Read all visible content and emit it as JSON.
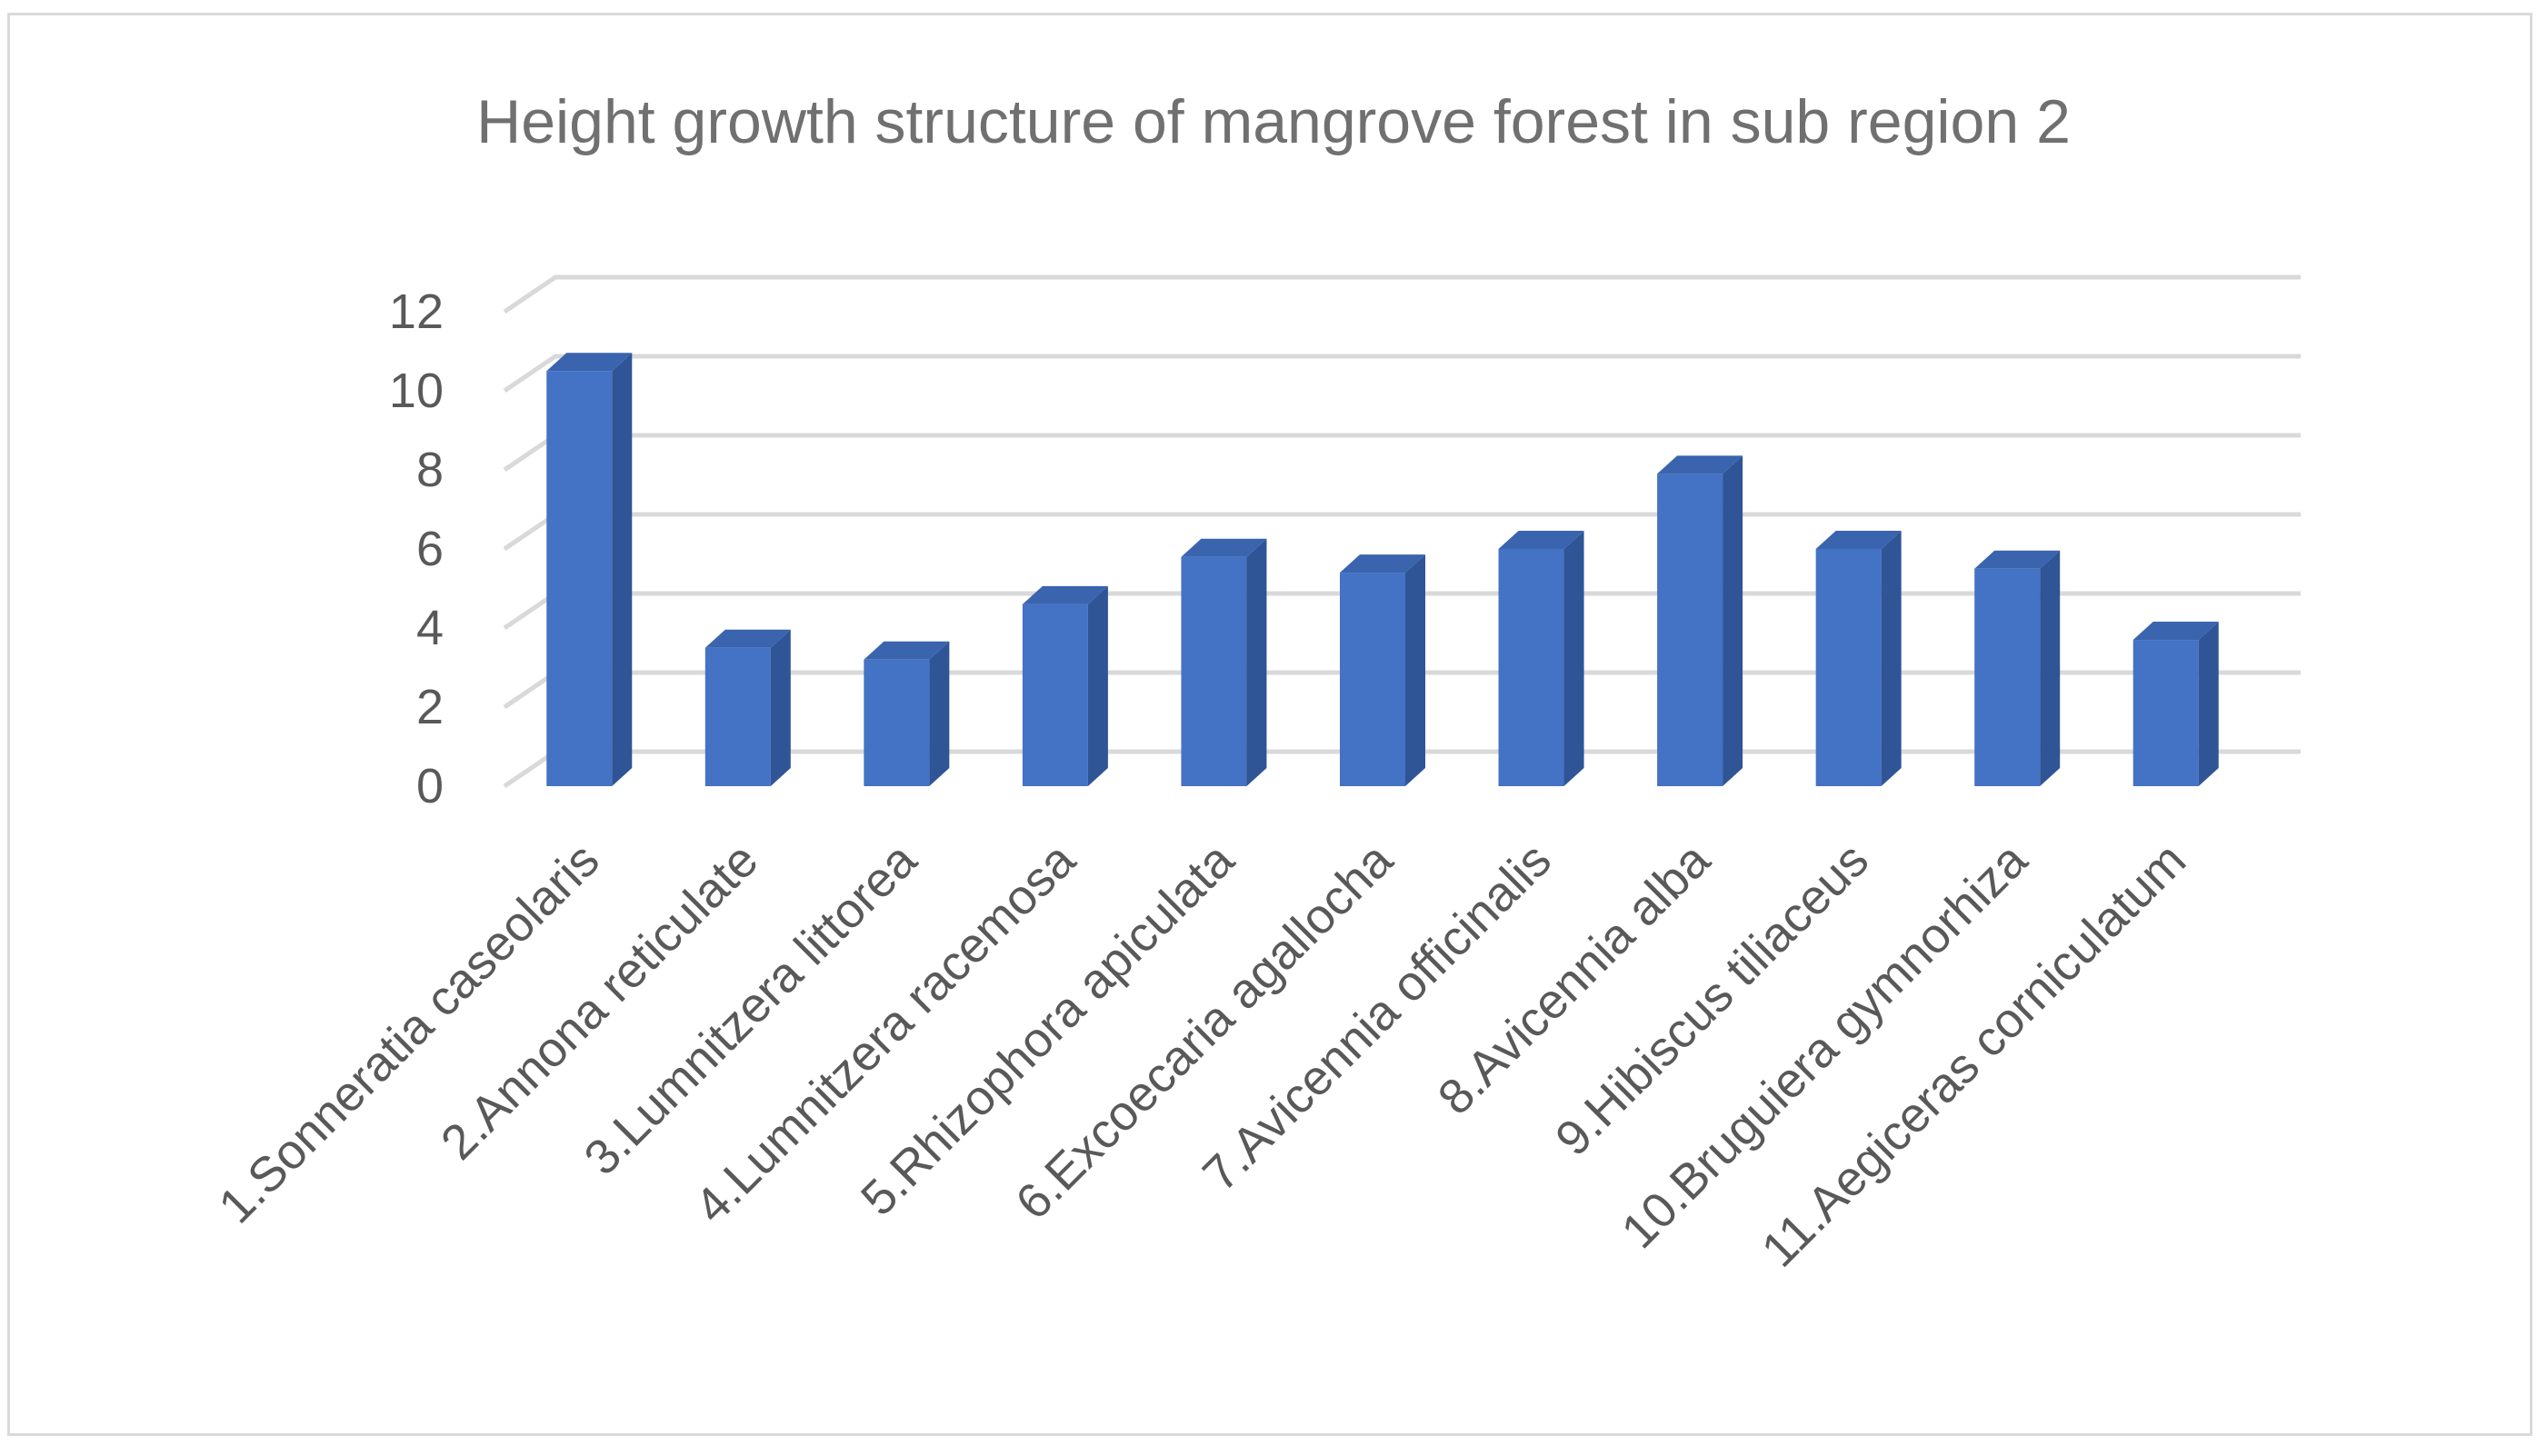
{
  "chart_data": {
    "type": "bar",
    "title": "Height growth structure of mangrove forest in sub region 2",
    "xlabel": "",
    "ylabel": "",
    "categories": [
      "1.Sonneratia caseolaris",
      "2.Annona reticulate",
      "3.Lumnitzera littorea",
      "4.Lumnitzera racemosa",
      "5.Rhizophora apiculata",
      "6.Excoecaria agallocha",
      "7.Avicennia officinalis",
      "8.Avicennia alba",
      "9.Hibiscus tiliaceus",
      "10.Bruguiera gymnorhiza",
      "11.Aegiceras corniculatum"
    ],
    "values": [
      10.5,
      3.5,
      3.2,
      4.6,
      5.8,
      5.4,
      6.0,
      7.9,
      6.0,
      5.5,
      3.7
    ],
    "yticks": [
      "0",
      "2",
      "4",
      "6",
      "8",
      "10",
      "12"
    ],
    "ylim": [
      0,
      12
    ],
    "grid": true,
    "legend": "none",
    "colors": {
      "bar_front": "#4472c4",
      "bar_side": "#2f5597",
      "bar_top": "#3a64ae",
      "grid": "#d9d9d9",
      "text": "#595959"
    }
  }
}
